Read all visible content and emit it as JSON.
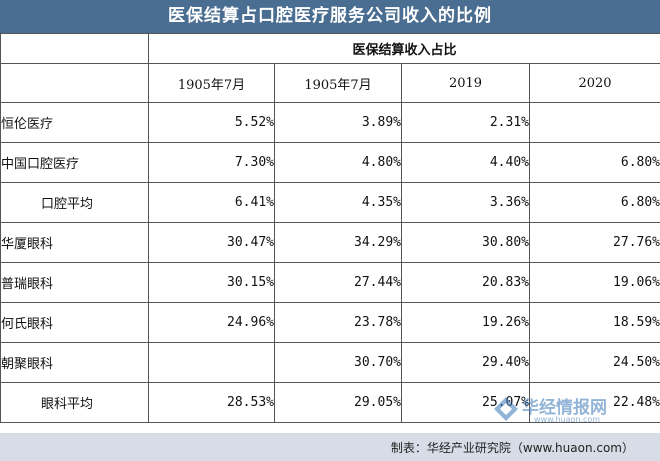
{
  "title": "医保结算占口腔医疗服务公司收入的比例",
  "table": {
    "group_header": "医保结算收入占比",
    "columns": [
      "1905年7月",
      "1905年7月",
      "2019",
      "2020"
    ],
    "rows": [
      {
        "label": "恒伦医疗",
        "indent": false,
        "values": [
          "5.52%",
          "3.89%",
          "2.31%",
          ""
        ]
      },
      {
        "label": "中国口腔医疗",
        "indent": false,
        "values": [
          "7.30%",
          "4.80%",
          "4.40%",
          "6.80%"
        ]
      },
      {
        "label": "口腔平均",
        "indent": true,
        "values": [
          "6.41%",
          "4.35%",
          "3.36%",
          "6.80%"
        ]
      },
      {
        "label": "华厦眼科",
        "indent": false,
        "values": [
          "30.47%",
          "34.29%",
          "30.80%",
          "27.76%"
        ]
      },
      {
        "label": "普瑞眼科",
        "indent": false,
        "values": [
          "30.15%",
          "27.44%",
          "20.83%",
          "19.06%"
        ]
      },
      {
        "label": "何氏眼科",
        "indent": false,
        "values": [
          "24.96%",
          "23.78%",
          "19.26%",
          "18.59%"
        ]
      },
      {
        "label": "朝聚眼科",
        "indent": false,
        "values": [
          "",
          "30.70%",
          "29.40%",
          "24.50%"
        ]
      },
      {
        "label": "眼科平均",
        "indent": true,
        "values": [
          "28.53%",
          "29.05%",
          "25.07%",
          "22.48%"
        ]
      }
    ]
  },
  "watermark": {
    "brand": "华经情报网",
    "url": "www.huaon.com"
  },
  "source": "制表：华经产业研究院（www.huaon.com）",
  "colors": {
    "title_bg": "#4a6e91",
    "footer_bg": "#d6dde6",
    "border": "#555555"
  }
}
